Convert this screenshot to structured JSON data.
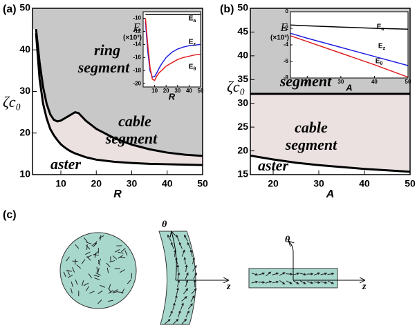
{
  "chart_data": [
    {
      "type": "area",
      "panel_label": "(a)",
      "xlabel": "R",
      "ylabel": "ζc₀",
      "x": [
        3,
        4,
        5,
        6,
        7,
        8,
        9,
        10,
        11,
        12,
        13,
        14,
        15,
        17,
        20,
        25,
        30,
        35,
        40,
        45,
        50
      ],
      "series": [
        {
          "color": "#000000",
          "values": [
            45,
            37,
            31,
            27,
            24.5,
            23.2,
            22.8,
            23,
            23.5,
            24,
            24.5,
            25,
            24.8,
            23,
            21,
            18.8,
            17.2,
            16.1,
            15.3,
            14.8,
            14.5
          ]
        },
        {
          "color": "#000000",
          "values": [
            44,
            33,
            27,
            23.5,
            21,
            19.5,
            18.3,
            17.3,
            16.6,
            16,
            15.5,
            15.1,
            14.8,
            14.2,
            13.6,
            13.1,
            12.8,
            12.6,
            12.5,
            12.4,
            12.3
          ]
        }
      ],
      "fill_colors": [
        "#c8c8c8",
        "#ebe1e1",
        "#ffffff"
      ],
      "annotations": [
        "ring segment",
        "cable segment",
        "aster"
      ],
      "xlim": [
        2,
        50
      ],
      "xticks": [
        10,
        20,
        30,
        40,
        50
      ],
      "ylim": [
        10,
        50
      ],
      "yticks": [
        10,
        20,
        30,
        40,
        50
      ]
    },
    {
      "type": "line",
      "xlabel": "R",
      "ylabel": "E",
      "ylabel_note": "(×10²)",
      "x": [
        2,
        4,
        6,
        8,
        10,
        12,
        14,
        16,
        20,
        25,
        30,
        35,
        40,
        45,
        50
      ],
      "series": [
        {
          "name": "Ea",
          "color": "#000000",
          "values": [
            -9.4,
            -9.4,
            -9.4,
            -9.4,
            -9.4,
            -9.4,
            -9.4,
            -9.4,
            -9.4,
            -9.4,
            -9.4,
            -9.4,
            -9.4,
            -9.4,
            -9.4
          ]
        },
        {
          "name": "Ez",
          "color": "#1f1fe0",
          "values": [
            -10.5,
            -15,
            -18,
            -19,
            -18.9,
            -18.3,
            -17.6,
            -17,
            -16,
            -15.2,
            -14.7,
            -14.4,
            -14.2,
            -14.1,
            -14
          ]
        },
        {
          "name": "Eθ",
          "color": "#e01f1f",
          "values": [
            -10,
            -14,
            -17.5,
            -19.3,
            -19.5,
            -18.8,
            -18.3,
            -18,
            -17.3,
            -16.8,
            -16.3,
            -16,
            -15.8,
            -15.6,
            -15.5
          ]
        }
      ],
      "xlim": [
        0,
        50
      ],
      "xticks": [
        10,
        20,
        30,
        40,
        50
      ],
      "ylim": [
        -20.5,
        -9
      ],
      "yticks": [
        -10,
        -12,
        -14,
        -16,
        -18,
        -20
      ]
    },
    {
      "type": "area",
      "panel_label": "(b)",
      "xlabel": "A",
      "ylabel": "ζc₀",
      "x": [
        15,
        20,
        25,
        30,
        35,
        40,
        45,
        50
      ],
      "series": [
        {
          "color": "#000000",
          "values": [
            32,
            32,
            32,
            32,
            32,
            32,
            32,
            32
          ]
        },
        {
          "color": "#000000",
          "values": [
            19,
            18.2,
            17.5,
            17,
            16.6,
            16.2,
            15.9,
            15.6
          ]
        }
      ],
      "fill_colors": [
        "#c8c8c8",
        "#ebe1e1",
        "#ffffff"
      ],
      "annotations": [
        "ring segment",
        "cable segment",
        "aster"
      ],
      "xlim": [
        15,
        50
      ],
      "xticks": [
        20,
        30,
        40,
        50
      ],
      "ylim": [
        15,
        50
      ],
      "yticks": [
        15,
        20,
        25,
        30,
        35,
        40,
        45,
        50
      ]
    },
    {
      "type": "line",
      "xlabel": "A",
      "ylabel": "E",
      "ylabel_note": "(×10³)",
      "x": [
        15,
        20,
        30,
        40,
        50
      ],
      "series": [
        {
          "name": "Ea",
          "color": "#000000",
          "values": [
            -1.6,
            -1.7,
            -1.85,
            -2,
            -2.1
          ]
        },
        {
          "name": "Ez",
          "color": "#1f1fe0",
          "values": [
            -2.6,
            -3.2,
            -4.3,
            -5.4,
            -6.5
          ]
        },
        {
          "name": "Eθ",
          "color": "#e01f1f",
          "values": [
            -2.9,
            -3.6,
            -5,
            -6.4,
            -7.9
          ]
        }
      ],
      "xlim": [
        15,
        50
      ],
      "xticks": [
        20,
        30,
        40,
        50
      ],
      "ylim": [
        -8,
        0
      ],
      "yticks": [
        0,
        -2,
        -4,
        -6,
        -8
      ]
    }
  ],
  "diagram": {
    "label": "(c)",
    "axis_labels": [
      "θ",
      "z",
      "θ",
      "z"
    ]
  }
}
